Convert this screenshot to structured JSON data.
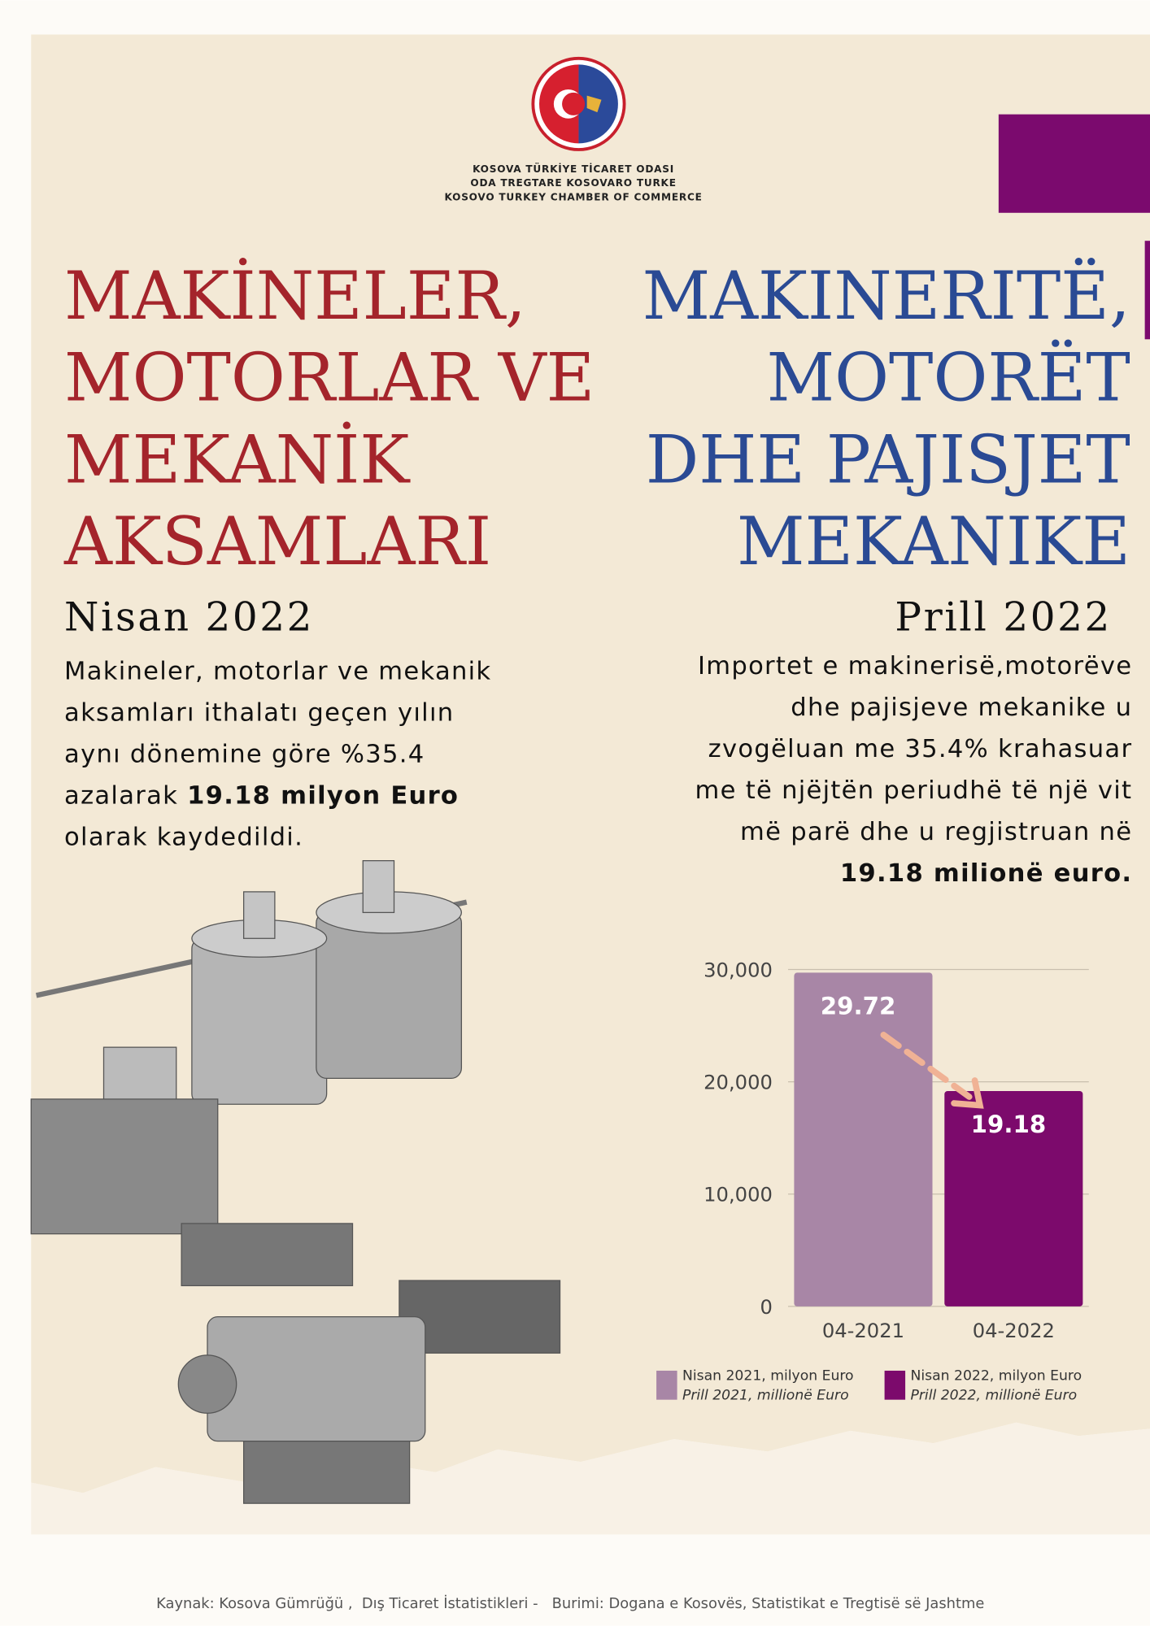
{
  "header": {
    "org_lines": [
      "KOSOVA TÜRKİYE TİCARET ODASI",
      "ODA TREGTARE KOSOVARO TURKE",
      "KOSOVO TURKEY CHAMBER OF COMMERCE"
    ]
  },
  "title_tr": [
    "MAKİNELER,",
    "MOTORLAR VE",
    "MEKANİK",
    "AKSAMLARI"
  ],
  "title_sq": [
    "MAKINERITË,",
    "MOTORËT",
    "DHE PAJISJET",
    "MEKANIKE"
  ],
  "date_tr": "Nisan 2022",
  "date_sq": "Prill 2022",
  "paragraph_tr": [
    [
      {
        "text": "Makineler, motorlar ve mekanik"
      }
    ],
    [
      {
        "text": "aksamları ithalatı geçen yılın"
      }
    ],
    [
      {
        "text": "aynı dönemine göre %35.4"
      }
    ],
    [
      {
        "text": "azalarak "
      },
      {
        "text": "19.18 milyon Euro",
        "bold": true
      }
    ],
    [
      {
        "text": "olarak kaydedildi."
      }
    ]
  ],
  "paragraph_sq": [
    [
      {
        "text": "Importet e makinerisë,motorëve"
      }
    ],
    [
      {
        "text": "dhe pajisjeve mekanike u"
      }
    ],
    [
      {
        "text": "zvogëluan me 35.4% krahasuar"
      }
    ],
    [
      {
        "text": "me të njëjtën periudhë të një vit"
      }
    ],
    [
      {
        "text": "më parë dhe u regjistruan në"
      }
    ],
    [
      {
        "text": "19.18 milionë euro.",
        "bold": true
      }
    ]
  ],
  "chart_data": {
    "type": "bar",
    "categories": [
      "04-2021",
      "04-2022"
    ],
    "values": [
      29720,
      19180
    ],
    "value_labels": [
      "29.72",
      "19.18"
    ],
    "colors": [
      "#a886a6",
      "#7c0a6c"
    ],
    "ylim": [
      0,
      30000
    ],
    "yticks": [
      {
        "value": 0,
        "label": "0"
      },
      {
        "value": 10000,
        "label": "10,000"
      },
      {
        "value": 20000,
        "label": "20,000"
      },
      {
        "value": 30000,
        "label": "30,000"
      }
    ],
    "grid": true,
    "legend": [
      [
        "Nisan 2021, milyon Euro",
        "Prill 2021, millionë Euro"
      ],
      [
        "Nisan 2022, milyon Euro",
        "Prill 2022, millionë Euro"
      ]
    ]
  },
  "footer": "Kaynak: Kosova Gümrüğü ,  Dış Ticaret İstatistikleri -   Burimi: Dogana e Kosovës, Statistikat e Tregtisë së Jashtme"
}
